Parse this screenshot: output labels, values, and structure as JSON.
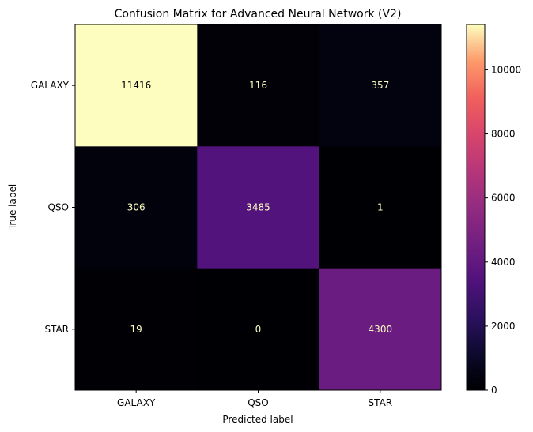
{
  "chart_data": {
    "type": "heatmap",
    "title": "Confusion Matrix for Advanced Neural Network (V2)",
    "xlabel": "Predicted label",
    "ylabel": "True label",
    "x_categories": [
      "GALAXY",
      "QSO",
      "STAR"
    ],
    "y_categories": [
      "GALAXY",
      "QSO",
      "STAR"
    ],
    "values": [
      [
        11416,
        116,
        357
      ],
      [
        306,
        3485,
        1
      ],
      [
        19,
        0,
        4300
      ]
    ],
    "colormap": "magma",
    "colorbar": {
      "range": [
        0,
        11416
      ],
      "ticks": [
        "0",
        "2000",
        "4000",
        "6000",
        "8000",
        "10000"
      ]
    },
    "light_text_color": "#fcfdbf",
    "dark_text_color": "#000004"
  }
}
